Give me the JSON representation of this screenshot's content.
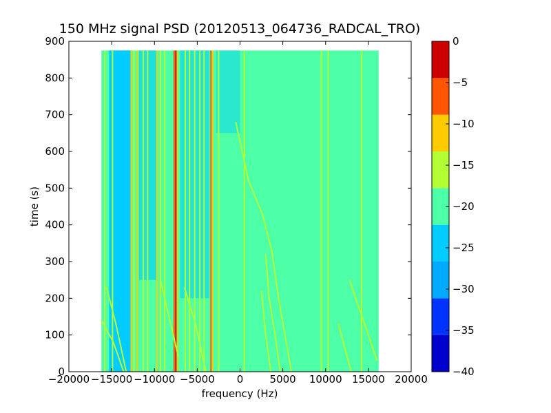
{
  "chart_data": {
    "type": "heatmap",
    "title": "150 MHz signal PSD (20120513_064736_RADCAL_TRO)",
    "xlabel": "frequency (Hz)",
    "ylabel": "time (s)",
    "xlim": [
      -20000,
      20000
    ],
    "ylim": [
      0,
      900
    ],
    "xticks": [
      "−20000",
      "−15000",
      "−10000",
      "−5000",
      "0",
      "5000",
      "10000",
      "15000",
      "20000"
    ],
    "yticks": [
      "0",
      "100",
      "200",
      "300",
      "400",
      "500",
      "600",
      "700",
      "800",
      "900"
    ],
    "data_extent": {
      "x": [
        -16200,
        16200
      ],
      "y": [
        0,
        875
      ]
    },
    "colorbar": {
      "levels": [
        -40,
        -35,
        -30,
        -25,
        -20,
        -15,
        -10,
        -5,
        0
      ],
      "tick_labels": [
        "−40",
        "−35",
        "−30",
        "−25",
        "−20",
        "−15",
        "−10",
        "−5",
        "0"
      ],
      "colors": [
        "#0000cc",
        "#0033ff",
        "#00aaff",
        "#00ccff",
        "#4dffa6",
        "#b3ff33",
        "#ffcc00",
        "#ff5500",
        "#cc0000"
      ]
    },
    "background_level_color": "#4dffa6",
    "low_band_color": "#00ccff",
    "vertical_lines": [
      {
        "x": -15800,
        "color": "#b3ff33"
      },
      {
        "x": -14900,
        "color": "#b3ff33"
      },
      {
        "x": -12700,
        "color": "#ffcc00"
      },
      {
        "x": -12400,
        "color": "#b3ff33"
      },
      {
        "x": -12000,
        "color": "#ffcc00"
      },
      {
        "x": -11300,
        "color": "#b3ff33"
      },
      {
        "x": -10800,
        "color": "#b3ff33"
      },
      {
        "x": -9700,
        "color": "#ffcc00"
      },
      {
        "x": -9300,
        "color": "#b3ff33"
      },
      {
        "x": -8800,
        "color": "#b3ff33"
      },
      {
        "x": -7700,
        "color": "#ff5500"
      },
      {
        "x": -7500,
        "color": "#cc0000"
      },
      {
        "x": -7300,
        "color": "#ffcc00"
      },
      {
        "x": -6400,
        "color": "#b3ff33"
      },
      {
        "x": -5900,
        "color": "#b3ff33"
      },
      {
        "x": -5300,
        "color": "#b3ff33"
      },
      {
        "x": -4700,
        "color": "#b3ff33"
      },
      {
        "x": -4200,
        "color": "#b3ff33"
      },
      {
        "x": -3400,
        "color": "#ff5500"
      },
      {
        "x": -3200,
        "color": "#ffcc00"
      },
      {
        "x": -2500,
        "color": "#b3ff33"
      },
      {
        "x": 500,
        "color": "#b3ff33"
      },
      {
        "x": 9500,
        "color": "#b3ff33"
      },
      {
        "x": 10300,
        "color": "#b3ff33"
      },
      {
        "x": 14200,
        "color": "#b3ff33"
      }
    ],
    "curves": [
      {
        "color": "#b3ff33",
        "points": [
          [
            -500,
            680
          ],
          [
            1000,
            520
          ],
          [
            2600,
            430
          ],
          [
            3700,
            330
          ],
          [
            4500,
            200
          ],
          [
            5400,
            80
          ],
          [
            6000,
            0
          ]
        ]
      },
      {
        "color": "#b3ff33",
        "points": [
          [
            3000,
            320
          ],
          [
            3400,
            200
          ],
          [
            4100,
            100
          ],
          [
            4700,
            0
          ]
        ]
      },
      {
        "color": "#b3ff33",
        "points": [
          [
            2500,
            220
          ],
          [
            3000,
            100
          ],
          [
            3600,
            0
          ]
        ]
      },
      {
        "color": "#b3ff33",
        "points": [
          [
            12800,
            250
          ],
          [
            13800,
            180
          ],
          [
            15000,
            100
          ],
          [
            16000,
            30
          ]
        ]
      },
      {
        "color": "#b3ff33",
        "points": [
          [
            11500,
            130
          ],
          [
            12300,
            60
          ],
          [
            13000,
            0
          ]
        ]
      },
      {
        "color": "#b3ff33",
        "points": [
          [
            -16200,
            140
          ],
          [
            -14800,
            80
          ],
          [
            -13600,
            0
          ]
        ]
      },
      {
        "color": "#b3ff33",
        "points": [
          [
            -15600,
            230
          ],
          [
            -14500,
            130
          ],
          [
            -13300,
            0
          ]
        ]
      },
      {
        "color": "#b3ff33",
        "points": [
          [
            -9300,
            250
          ],
          [
            -8300,
            150
          ],
          [
            -7200,
            40
          ]
        ]
      },
      {
        "color": "#b3ff33",
        "points": [
          [
            -6500,
            230
          ],
          [
            -5200,
            130
          ],
          [
            -4000,
            0
          ]
        ]
      }
    ]
  }
}
